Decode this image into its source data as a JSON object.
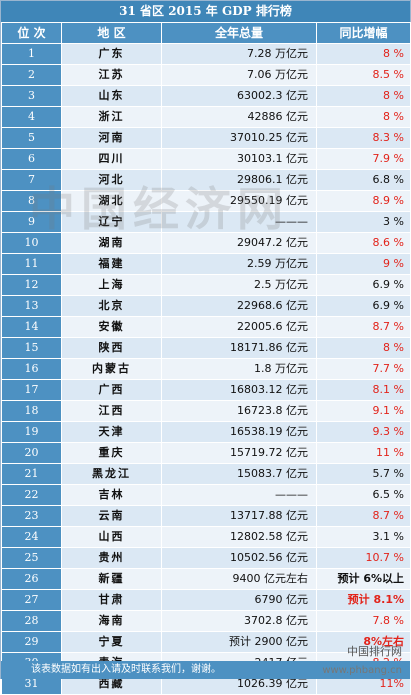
{
  "title": "31 省区 2015 年 GDP 排行榜",
  "headers": {
    "rank": "位 次",
    "region": "地 区",
    "total": "全年总量",
    "growth": "同比增幅"
  },
  "rows": [
    {
      "rank": "1",
      "region": "广东",
      "total": "7.28 万亿元",
      "growth": "8 %",
      "growth_red": true
    },
    {
      "rank": "2",
      "region": "江苏",
      "total": "7.06 万亿元",
      "growth": "8.5 %",
      "growth_red": true
    },
    {
      "rank": "3",
      "region": "山东",
      "total": "63002.3 亿元",
      "growth": "8 %",
      "growth_red": true
    },
    {
      "rank": "4",
      "region": "浙江",
      "total": "42886 亿元",
      "growth": "8 %",
      "growth_red": true
    },
    {
      "rank": "5",
      "region": "河南",
      "total": "37010.25 亿元",
      "growth": "8.3 %",
      "growth_red": true
    },
    {
      "rank": "6",
      "region": "四川",
      "total": "30103.1 亿元",
      "growth": "7.9 %",
      "growth_red": true
    },
    {
      "rank": "7",
      "region": "河北",
      "total": "29806.1 亿元",
      "growth": "6.8 %",
      "growth_red": false
    },
    {
      "rank": "8",
      "region": "湖北",
      "total": "29550.19 亿元",
      "growth": "8.9 %",
      "growth_red": true
    },
    {
      "rank": "9",
      "region": "辽宁",
      "total": "———",
      "growth": "3 %",
      "growth_red": false
    },
    {
      "rank": "10",
      "region": "湖南",
      "total": "29047.2 亿元",
      "growth": "8.6 %",
      "growth_red": true
    },
    {
      "rank": "11",
      "region": "福建",
      "total": "2.59 万亿元",
      "growth": "9 %",
      "growth_red": true
    },
    {
      "rank": "12",
      "region": "上海",
      "total": "2.5 万亿元",
      "growth": "6.9 %",
      "growth_red": false
    },
    {
      "rank": "13",
      "region": "北京",
      "total": "22968.6 亿元",
      "growth": "6.9 %",
      "growth_red": false
    },
    {
      "rank": "14",
      "region": "安徽",
      "total": "22005.6 亿元",
      "growth": "8.7 %",
      "growth_red": true
    },
    {
      "rank": "15",
      "region": "陕西",
      "total": "18171.86 亿元",
      "growth": "8 %",
      "growth_red": true
    },
    {
      "rank": "16",
      "region": "内蒙古",
      "total": "1.8 万亿元",
      "growth": "7.7 %",
      "growth_red": true
    },
    {
      "rank": "17",
      "region": "广西",
      "total": "16803.12 亿元",
      "growth": "8.1 %",
      "growth_red": true
    },
    {
      "rank": "18",
      "region": "江西",
      "total": "16723.8 亿元",
      "growth": "9.1 %",
      "growth_red": true
    },
    {
      "rank": "19",
      "region": "天津",
      "total": "16538.19 亿元",
      "growth": "9.3 %",
      "growth_red": true
    },
    {
      "rank": "20",
      "region": "重庆",
      "total": "15719.72 亿元",
      "growth": "11 %",
      "growth_red": true
    },
    {
      "rank": "21",
      "region": "黑龙江",
      "total": "15083.7 亿元",
      "growth": "5.7 %",
      "growth_red": false
    },
    {
      "rank": "22",
      "region": "吉林",
      "total": "———",
      "growth": "6.5 %",
      "growth_red": false
    },
    {
      "rank": "23",
      "region": "云南",
      "total": "13717.88 亿元",
      "growth": "8.7 %",
      "growth_red": true
    },
    {
      "rank": "24",
      "region": "山西",
      "total": "12802.58 亿元",
      "growth": "3.1 %",
      "growth_red": false
    },
    {
      "rank": "25",
      "region": "贵州",
      "total": "10502.56 亿元",
      "growth": "10.7 %",
      "growth_red": true
    },
    {
      "rank": "26",
      "region": "新疆",
      "total": "9400 亿元左右",
      "growth": "预计 6%以上",
      "growth_red": false,
      "growth_bold": true
    },
    {
      "rank": "27",
      "region": "甘肃",
      "total": "6790 亿元",
      "growth": "预计 8.1%",
      "growth_red": true,
      "growth_bold": true
    },
    {
      "rank": "28",
      "region": "海南",
      "total": "3702.8 亿元",
      "growth": "7.8 %",
      "growth_red": true
    },
    {
      "rank": "29",
      "region": "宁夏",
      "total": "预计 2900 亿元",
      "growth": "8%左右",
      "growth_red": true,
      "growth_bold": true
    },
    {
      "rank": "30",
      "region": "青海",
      "total": "2417 亿元",
      "growth": "8.2 %",
      "growth_red": true
    },
    {
      "rank": "31",
      "region": "西藏",
      "total": "1026.39 亿元",
      "growth": "11%",
      "growth_red": true
    }
  ],
  "footer": "该表数据如有出入请及时联系我们，谢谢。",
  "watermark": {
    "center": "中国经济网",
    "corner": "中国排行网",
    "url": "www.phbang.cn"
  }
}
